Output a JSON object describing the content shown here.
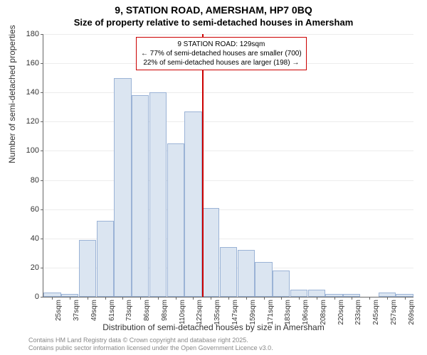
{
  "title": "9, STATION ROAD, AMERSHAM, HP7 0BQ",
  "subtitle": "Size of property relative to semi-detached houses in Amersham",
  "ylabel": "Number of semi-detached properties",
  "xlabel": "Distribution of semi-detached houses by size in Amersham",
  "footer_line1": "Contains HM Land Registry data © Crown copyright and database right 2025.",
  "footer_line2": "Contains public sector information licensed under the Open Government Licence v3.0.",
  "chart": {
    "type": "histogram",
    "ylim": [
      0,
      180
    ],
    "ytick_step": 20,
    "bar_fill": "#dbe5f1",
    "bar_stroke": "#9bb3d6",
    "grid_color": "#666666",
    "grid_opacity": 0.12,
    "background": "#ffffff",
    "marker_color": "#cc0000",
    "annotation_border": "#cc0000",
    "categories": [
      "25sqm",
      "37sqm",
      "49sqm",
      "61sqm",
      "73sqm",
      "86sqm",
      "98sqm",
      "110sqm",
      "122sqm",
      "135sqm",
      "147sqm",
      "159sqm",
      "171sqm",
      "183sqm",
      "196sqm",
      "208sqm",
      "220sqm",
      "233sqm",
      "245sqm",
      "257sqm",
      "269sqm"
    ],
    "values": [
      3,
      2,
      39,
      52,
      150,
      138,
      140,
      105,
      127,
      61,
      34,
      32,
      24,
      18,
      5,
      5,
      2,
      2,
      0,
      3,
      2
    ],
    "marker_index_after": 8,
    "annotation": {
      "line1": "9 STATION ROAD: 129sqm",
      "line2": "← 77% of semi-detached houses are smaller (700)",
      "line3": "22% of semi-detached houses are larger (198) →"
    }
  }
}
